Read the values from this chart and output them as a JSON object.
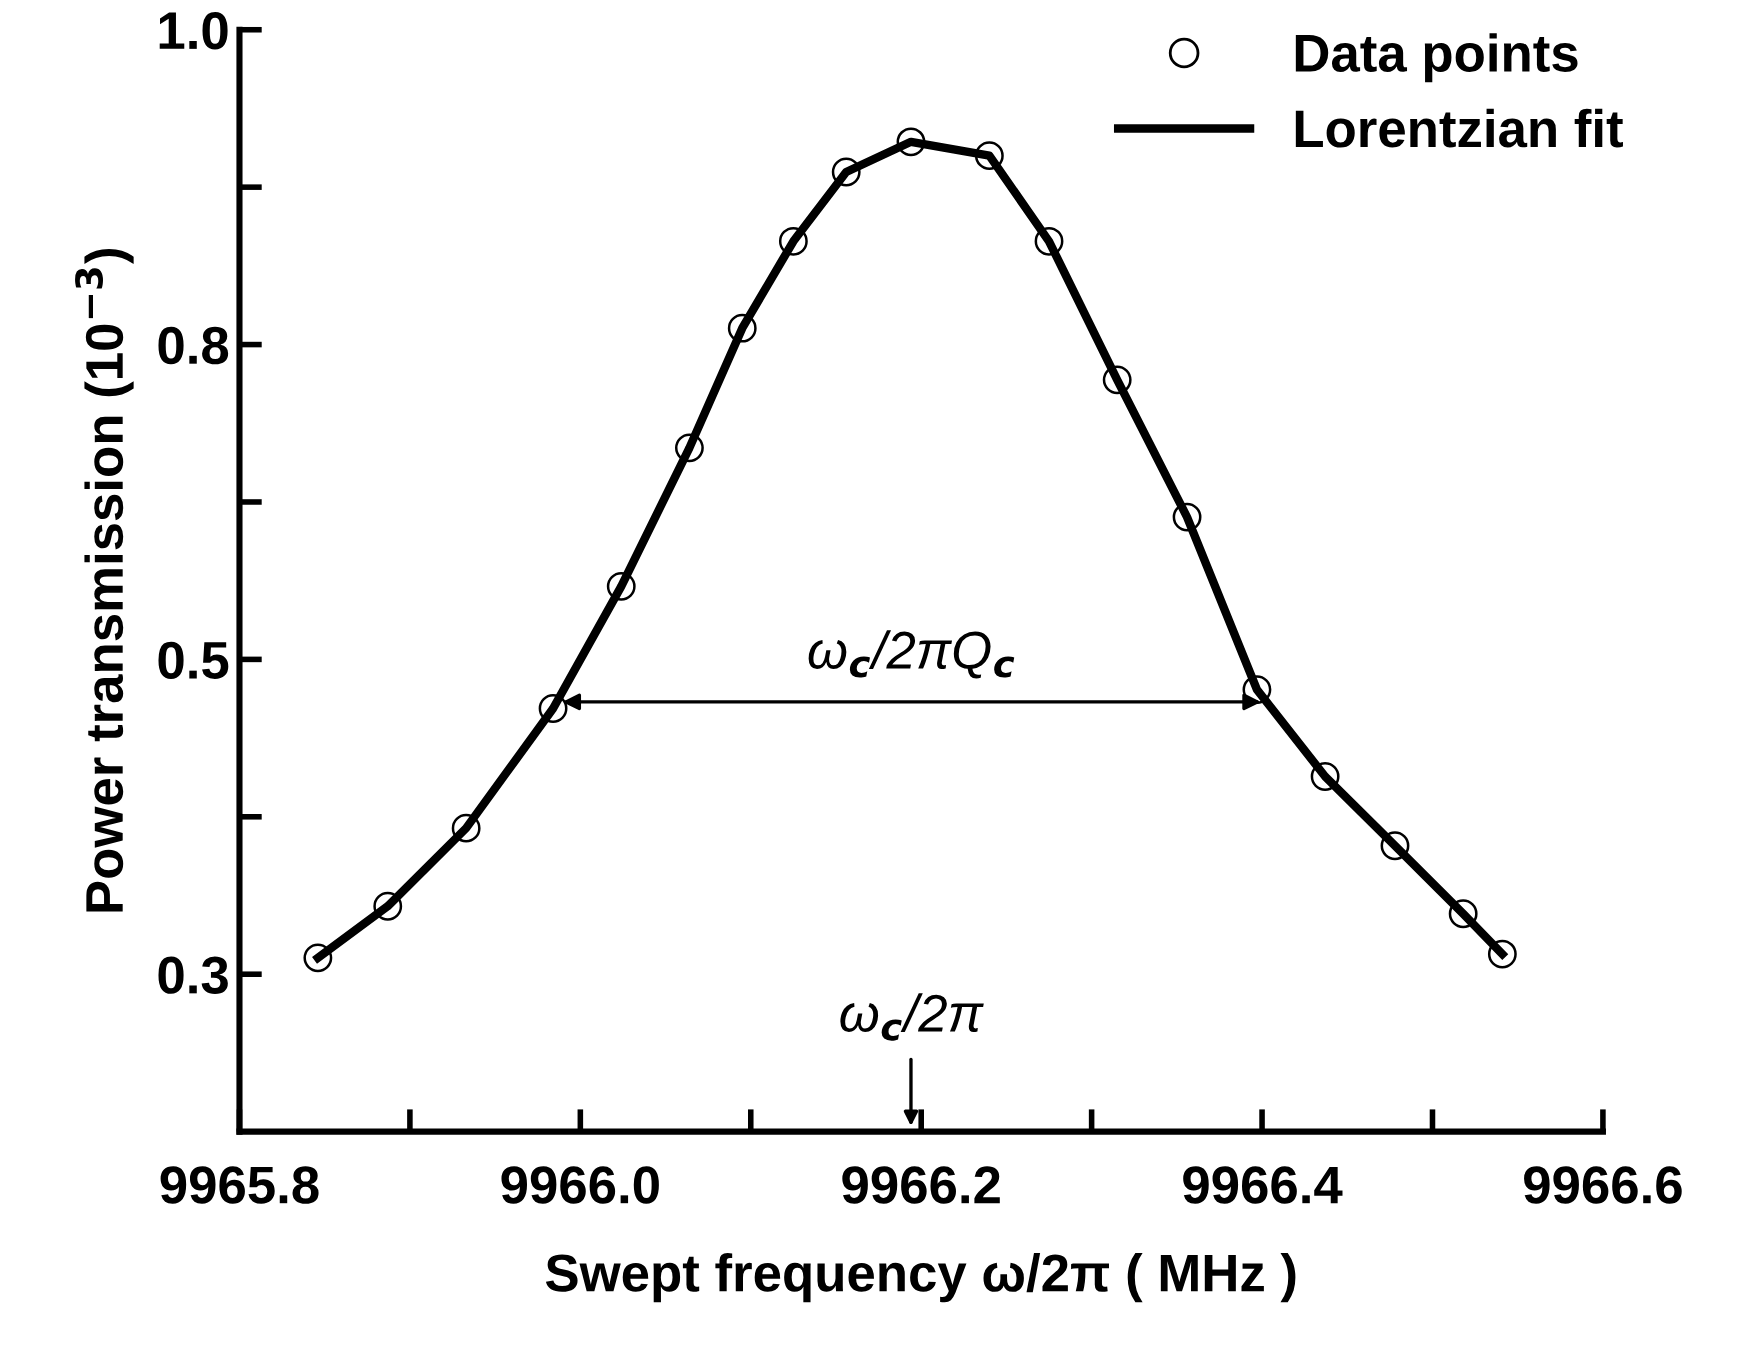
{
  "chart_data": {
    "type": "scatter",
    "xlabel": "Swept frequency ω/2π ( MHz )",
    "ylabel": "Power transmission (10$^{−3}$)",
    "xlim": [
      9965.8,
      9966.6
    ],
    "ylim": [
      0.125,
      1.0
    ],
    "xticks": [
      {
        "value": 9965.8,
        "label": "9965.8"
      },
      {
        "value": 9965.9,
        "label": null
      },
      {
        "value": 9966.0,
        "label": "9966.0"
      },
      {
        "value": 9966.1,
        "label": null
      },
      {
        "value": 9966.2,
        "label": "9966.2"
      },
      {
        "value": 9966.3,
        "label": null
      },
      {
        "value": 9966.4,
        "label": "9966.4"
      },
      {
        "value": 9966.5,
        "label": null
      },
      {
        "value": 9966.6,
        "label": "9966.6"
      }
    ],
    "yticks": [
      {
        "value": 0.25,
        "label": "0.3"
      },
      {
        "value": 0.375,
        "label": null
      },
      {
        "value": 0.5,
        "label": "0.5"
      },
      {
        "value": 0.625,
        "label": null
      },
      {
        "value": 0.75,
        "label": "0.8"
      },
      {
        "value": 0.875,
        "label": null
      },
      {
        "value": 1.0,
        "label": "1.0"
      }
    ],
    "legend": "top right",
    "grid": false,
    "series": [
      {
        "name": "Data points",
        "marker": "circle",
        "color": "#000000",
        "x": [
          9965.846,
          9965.887,
          9965.933,
          9965.984,
          9966.024,
          9966.064,
          9966.095,
          9966.125,
          9966.156,
          9966.194,
          9966.24,
          9966.275,
          9966.315,
          9966.356,
          9966.397,
          9966.437,
          9966.478,
          9966.518,
          9966.541
        ],
        "values": [
          0.263,
          0.304,
          0.366,
          0.461,
          0.558,
          0.668,
          0.763,
          0.832,
          0.887,
          0.911,
          0.9,
          0.832,
          0.722,
          0.613,
          0.476,
          0.407,
          0.352,
          0.298,
          0.266
        ]
      },
      {
        "name": "Lorentzian fit",
        "type": "line",
        "line_style": "solid",
        "color": "#000000",
        "x": [
          9965.846,
          9965.887,
          9965.933,
          9965.984,
          9966.024,
          9966.064,
          9966.095,
          9966.125,
          9966.156,
          9966.194,
          9966.24,
          9966.275,
          9966.315,
          9966.356,
          9966.397,
          9966.437,
          9966.478,
          9966.518,
          9966.541
        ],
        "values": [
          0.263,
          0.304,
          0.366,
          0.461,
          0.558,
          0.668,
          0.763,
          0.832,
          0.887,
          0.911,
          0.9,
          0.832,
          0.722,
          0.613,
          0.476,
          0.407,
          0.352,
          0.298,
          0.266
        ]
      }
    ],
    "annotations": [
      "ω$_{c}$/2πQ$_{c}$",
      "ω$_{c}$/2π"
    ]
  }
}
